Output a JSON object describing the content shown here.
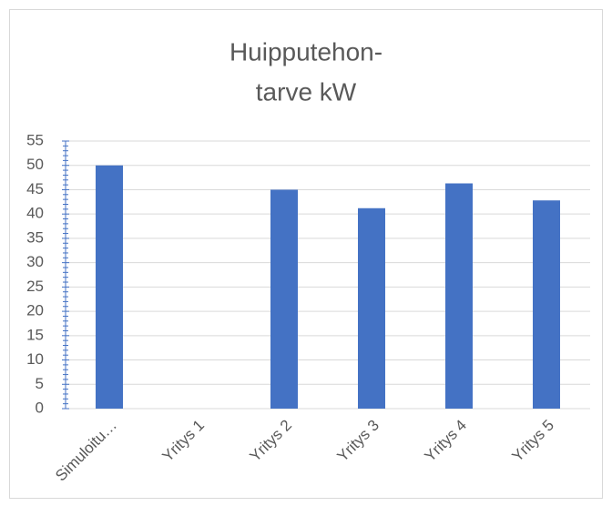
{
  "chart_data": {
    "type": "bar",
    "title": [
      "Huipputehon-",
      "tarve kW"
    ],
    "categories": [
      "Simuloitu…",
      "Yritys 1",
      "Yritys 2",
      "Yritys 3",
      "Yritys 4",
      "Yritys 5"
    ],
    "values": [
      50,
      0,
      45,
      41.2,
      46.3,
      42.8
    ],
    "color": "#4472c4",
    "ylim": [
      0,
      55
    ],
    "yticks": [
      0,
      5,
      10,
      15,
      20,
      25,
      30,
      35,
      40,
      45,
      50,
      55
    ],
    "grid": true
  }
}
